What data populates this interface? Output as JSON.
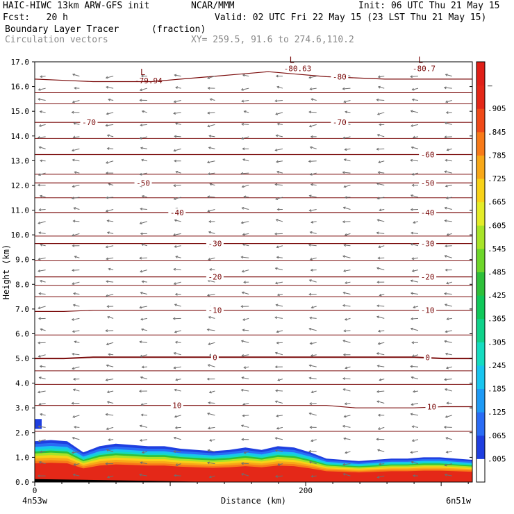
{
  "header": {
    "line1_left": "HAIC-HIWC 13km ARW-GFS init",
    "line1_mid": "NCAR/MMM",
    "line1_right": "Init: 06 UTC Thu 21 May 15",
    "line2_left": "Fcst:   20 h",
    "line2_right": "Valid: 02 UTC Fri 22 May 15 (23 LST Thu 21 May 15)",
    "line3_left": "Boundary Layer Tracer",
    "line3_mid": "(fraction)",
    "line4_left": "Circulation vectors",
    "line4_mid": "XY= 259.5, 91.6 to 274.6,110.2"
  },
  "chart_data": {
    "type": "heatmap",
    "title": "Boundary Layer Tracer",
    "units": "(fraction)",
    "overlays": [
      "Circulation vectors",
      "Temperature contours"
    ],
    "ylabel": "Height (km)",
    "xlabel": "Distance (km)",
    "ylim": [
      0,
      17
    ],
    "yticks": [
      "0.0",
      "1.0",
      "2.0",
      "3.0",
      "4.0",
      "5.0",
      "6.0",
      "7.0",
      "8.0",
      "9.0",
      "10.0",
      "11.0",
      "12.0",
      "13.0",
      "14.0",
      "15.0",
      "16.0",
      "17.0"
    ],
    "xlim": [
      0,
      323
    ],
    "xticks": [
      {
        "pos": 0,
        "label": "0"
      },
      {
        "pos": 200,
        "label": "200"
      }
    ],
    "x_end_labels": {
      "left": "4n53w",
      "right": "6n51w"
    },
    "colorbar": {
      "labels": [
        ".005",
        ".065",
        ".125",
        ".185",
        ".245",
        ".305",
        ".365",
        ".425",
        ".485",
        ".545",
        ".605",
        ".665",
        ".725",
        ".785",
        ".845",
        ".905",
        "–"
      ],
      "colors": [
        "#ffffff",
        "#1f3fe0",
        "#2a6cf5",
        "#1e9af5",
        "#19c5ef",
        "#15dcc0",
        "#10d28a",
        "#10c85a",
        "#2ec03a",
        "#6ed62a",
        "#a8e428",
        "#e4ec28",
        "#f8d218",
        "#f8a818",
        "#f87a18",
        "#f04a18",
        "#e42818",
        "#e02018"
      ]
    },
    "tracer_top_km": [
      1.65,
      1.7,
      1.65,
      1.2,
      1.45,
      1.55,
      1.5,
      1.45,
      1.45,
      1.35,
      1.3,
      1.25,
      1.3,
      1.4,
      1.3,
      1.45,
      1.4,
      1.2,
      0.95,
      0.9,
      0.85,
      0.9,
      0.95,
      0.95,
      1.0,
      1.0,
      0.95,
      0.9
    ],
    "temperature_contours": [
      {
        "label": "10",
        "y": [
          3.1,
          3.1,
          3.1,
          3.1,
          3.1,
          3.1,
          3.1,
          3.1,
          3.1,
          3.1,
          3.1,
          3.0,
          3.0,
          3.0,
          3.05,
          3.05
        ]
      },
      {
        "label": "0",
        "y": [
          5.0,
          5.0,
          5.05,
          5.05,
          5.05,
          5.05,
          5.05,
          5.05,
          5.05,
          5.05,
          5.05,
          5.05,
          5.05,
          5.05,
          5.0,
          5.0
        ]
      },
      {
        "label": "-10",
        "y": [
          6.9,
          6.9,
          6.95,
          6.95,
          6.95,
          6.95,
          6.95,
          6.95,
          6.95,
          6.95,
          6.95,
          6.95,
          6.95,
          6.95,
          6.95,
          6.95
        ]
      },
      {
        "label": "-20",
        "y": [
          8.3,
          8.3,
          8.3,
          8.3,
          8.3,
          8.3,
          8.3,
          8.3,
          8.3,
          8.3,
          8.3,
          8.3,
          8.3,
          8.3,
          8.3,
          8.3
        ]
      },
      {
        "label": "-30",
        "y": [
          9.65,
          9.65,
          9.65,
          9.65,
          9.65,
          9.65,
          9.65,
          9.65,
          9.65,
          9.65,
          9.65,
          9.65,
          9.65,
          9.65,
          9.65,
          9.65
        ]
      },
      {
        "label": "-40",
        "y": [
          10.9,
          10.9,
          10.9,
          10.9,
          10.9,
          10.9,
          10.9,
          10.9,
          10.9,
          10.9,
          10.9,
          10.9,
          10.9,
          10.9,
          10.9,
          10.9
        ]
      },
      {
        "label": "-50",
        "y": [
          12.1,
          12.1,
          12.1,
          12.1,
          12.1,
          12.1,
          12.1,
          12.1,
          12.1,
          12.1,
          12.1,
          12.1,
          12.1,
          12.1,
          12.1,
          12.1
        ]
      },
      {
        "label": "-60",
        "y": [
          13.25,
          13.25,
          13.25,
          13.25,
          13.25,
          13.25,
          13.25,
          13.25,
          13.25,
          13.25,
          13.25,
          13.25,
          13.25,
          13.25,
          13.25,
          13.25
        ]
      },
      {
        "label": "-70",
        "y": [
          14.55,
          14.55,
          14.55,
          14.55,
          14.55,
          14.55,
          14.55,
          14.55,
          14.55,
          14.55,
          14.55,
          14.55,
          14.55,
          14.55,
          14.55,
          14.55
        ]
      },
      {
        "label": "-80",
        "y": [
          16.3,
          16.25,
          16.2,
          16.2,
          16.2,
          16.3,
          16.4,
          16.5,
          16.6,
          16.5,
          16.4,
          16.35,
          16.3,
          16.3,
          16.3,
          16.3
        ]
      }
    ],
    "extra_contour_lines_km": [
      2.05,
      3.95,
      4.5,
      5.95,
      7.5,
      7.95,
      8.95,
      9.95,
      11.5,
      12.45,
      13.9,
      15.3,
      15.75
    ],
    "lows": [
      {
        "label": "L",
        "value": "-79.94",
        "x": 80,
        "y": 16.35
      },
      {
        "label": "L",
        "value": "-80.63",
        "x": 190,
        "y": 16.85
      },
      {
        "label": "L",
        "value": "-80.7",
        "x": 285,
        "y": 16.85
      }
    ]
  }
}
